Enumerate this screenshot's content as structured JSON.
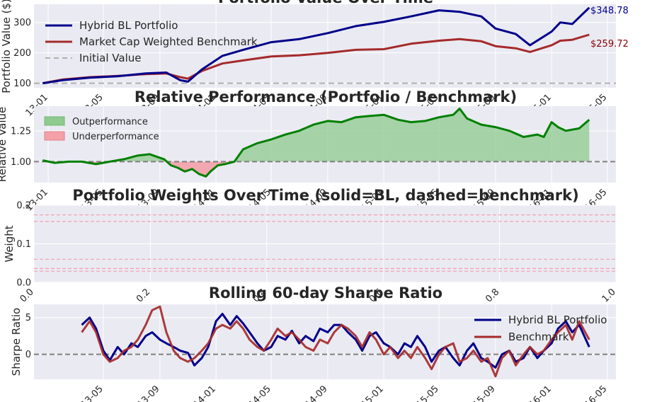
{
  "chart_data": [
    {
      "type": "line",
      "title": "Portfolio Value Over Time",
      "ylabel": "Portfolio Value ($)",
      "xlabel": "",
      "x_ticks": [
        "13-01",
        "13-05",
        "13-09",
        "14-01",
        "14-05",
        "14-09",
        "15-01",
        "15-05",
        "15-09",
        "16-01",
        "16-05"
      ],
      "yticks": [
        100,
        200,
        300
      ],
      "ylim": [
        85,
        360
      ],
      "grid": true,
      "legend": "top-left",
      "annotations": [
        {
          "text": "$348.78",
          "color": "#00008b"
        },
        {
          "text": "$259.72",
          "color": "#8b0000"
        }
      ],
      "series": [
        {
          "name": "Hybrid BL Portfolio",
          "color": "#00008b",
          "x": [
            "2012-12-20",
            "2013-02-01",
            "2013-04-01",
            "2013-06-01",
            "2013-08-01",
            "2013-09-15",
            "2013-10-15",
            "2013-11-01",
            "2013-12-01",
            "2014-01-15",
            "2014-03-01",
            "2014-05-01",
            "2014-07-01",
            "2014-09-01",
            "2014-11-01",
            "2015-01-01",
            "2015-03-01",
            "2015-05-01",
            "2015-06-15",
            "2015-08-01",
            "2015-09-01",
            "2015-10-15",
            "2015-11-15",
            "2016-01-01",
            "2016-01-20",
            "2016-02-15",
            "2016-03-23"
          ],
          "values": [
            100,
            110,
            118,
            123,
            132,
            135,
            110,
            105,
            145,
            190,
            210,
            235,
            245,
            265,
            288,
            302,
            320,
            340,
            335,
            320,
            280,
            262,
            225,
            270,
            300,
            295,
            348.78
          ]
        },
        {
          "name": "Market Cap Weighted Benchmark",
          "color": "#a52a2a",
          "x": [
            "2012-12-20",
            "2013-02-01",
            "2013-04-01",
            "2013-06-01",
            "2013-08-01",
            "2013-09-15",
            "2013-10-15",
            "2013-11-01",
            "2013-12-01",
            "2014-01-15",
            "2014-03-01",
            "2014-05-01",
            "2014-07-01",
            "2014-09-01",
            "2014-11-01",
            "2015-01-01",
            "2015-03-01",
            "2015-05-01",
            "2015-06-15",
            "2015-08-01",
            "2015-09-01",
            "2015-10-15",
            "2015-11-15",
            "2016-01-01",
            "2016-01-20",
            "2016-02-15",
            "2016-03-23"
          ],
          "values": [
            100,
            112,
            120,
            124,
            130,
            132,
            120,
            115,
            140,
            165,
            175,
            188,
            192,
            200,
            210,
            212,
            230,
            240,
            245,
            238,
            222,
            215,
            203,
            225,
            240,
            243,
            259.72
          ]
        },
        {
          "name": "Initial Value",
          "color": "#b0b0b0",
          "style": "dashed",
          "x": [
            "2012-12-01",
            "2016-05-20"
          ],
          "values": [
            100,
            100
          ]
        }
      ]
    },
    {
      "type": "area",
      "title": "Relative Performance (Portfolio / Benchmark)",
      "ylabel": "Relative Value",
      "xlabel": "",
      "x_ticks": [
        "13-01",
        "13-05",
        "13-09",
        "14-01",
        "14-05",
        "14-09",
        "15-01",
        "15-05",
        "15-09",
        "16-01",
        "16-05"
      ],
      "yticks": [
        1.0,
        1.25
      ],
      "ylim": [
        0.83,
        1.45
      ],
      "grid": true,
      "legend": "top-left",
      "baseline": 1.0,
      "series": [
        {
          "name": "",
          "color": "#008000",
          "x": [
            "2012-12-20",
            "2013-01-15",
            "2013-02-15",
            "2013-03-15",
            "2013-04-15",
            "2013-05-15",
            "2013-06-15",
            "2013-07-15",
            "2013-08-10",
            "2013-08-25",
            "2013-09-10",
            "2013-09-25",
            "2013-10-10",
            "2013-10-25",
            "2013-11-10",
            "2013-11-25",
            "2013-12-10",
            "2013-12-20",
            "2014-01-05",
            "2014-01-20",
            "2014-02-10",
            "2014-03-01",
            "2014-04-01",
            "2014-05-01",
            "2014-06-01",
            "2014-07-01",
            "2014-08-01",
            "2014-09-01",
            "2014-10-01",
            "2014-11-01",
            "2014-12-01",
            "2015-01-01",
            "2015-02-01",
            "2015-03-01",
            "2015-04-01",
            "2015-05-01",
            "2015-06-01",
            "2015-06-15",
            "2015-07-01",
            "2015-08-01",
            "2015-09-01",
            "2015-10-01",
            "2015-11-01",
            "2015-12-01",
            "2015-12-15",
            "2016-01-01",
            "2016-01-15",
            "2016-02-01",
            "2016-03-01",
            "2016-03-23"
          ],
          "values": [
            1.01,
            0.99,
            1.0,
            1.0,
            0.98,
            1.0,
            1.02,
            1.05,
            1.06,
            1.04,
            1.02,
            0.97,
            0.95,
            0.92,
            0.94,
            0.9,
            0.88,
            0.92,
            0.97,
            0.98,
            1.0,
            1.1,
            1.15,
            1.18,
            1.22,
            1.25,
            1.3,
            1.33,
            1.32,
            1.36,
            1.37,
            1.38,
            1.34,
            1.32,
            1.33,
            1.36,
            1.38,
            1.43,
            1.35,
            1.3,
            1.28,
            1.25,
            1.2,
            1.22,
            1.2,
            1.32,
            1.28,
            1.25,
            1.27,
            1.34
          ]
        }
      ],
      "legend_entries": [
        {
          "name": "Outperformance",
          "color": "#8fca8f"
        },
        {
          "name": "Underperformance",
          "color": "#f4a0a8"
        }
      ]
    },
    {
      "type": "line",
      "title": "Portfolio Weights Over Time (solid=BL, dashed=benchmark)",
      "ylabel": "Weight",
      "xlabel": "",
      "x_ticks": [
        "0.0",
        "0.2",
        "0.4",
        "0.6",
        "0.8",
        "1.0"
      ],
      "yticks": [
        0.0,
        0.1,
        0.2
      ],
      "ylim": [
        0.0,
        0.2
      ],
      "xlim": [
        0.0,
        1.0
      ],
      "grid": true,
      "series": [
        {
          "name": "",
          "color": "#f4a0b0",
          "style": "dashed",
          "values": [
            0.175,
            0.175
          ]
        },
        {
          "name": "",
          "color": "#f4a0b0",
          "style": "dashed",
          "values": [
            0.158,
            0.158
          ]
        },
        {
          "name": "",
          "color": "#f4a0b0",
          "style": "dashed",
          "values": [
            0.06,
            0.06
          ]
        },
        {
          "name": "",
          "color": "#f4a0b0",
          "style": "dashed",
          "values": [
            0.036,
            0.036
          ]
        },
        {
          "name": "",
          "color": "#f4a0b0",
          "style": "dashed",
          "values": [
            0.029,
            0.029
          ]
        }
      ]
    },
    {
      "type": "line",
      "title": "Rolling 60-day Sharpe Ratio",
      "ylabel": "Sharpe Ratio",
      "xlabel": "",
      "x_ticks": [
        "13-05",
        "13-09",
        "14-01",
        "14-05",
        "14-09",
        "15-01",
        "15-05",
        "15-09",
        "16-01",
        "16-05"
      ],
      "yticks": [
        0,
        5
      ],
      "ylim": [
        -3.4,
        6.8
      ],
      "grid": true,
      "legend": "top-right",
      "baseline": 0,
      "series": [
        {
          "name": "Hybrid BL Portfolio",
          "color": "#00008b",
          "x": [
            "2013-03-15",
            "2013-04-01",
            "2013-04-15",
            "2013-05-01",
            "2013-05-15",
            "2013-06-01",
            "2013-06-15",
            "2013-07-01",
            "2013-07-15",
            "2013-08-01",
            "2013-08-15",
            "2013-09-01",
            "2013-09-15",
            "2013-10-01",
            "2013-10-15",
            "2013-11-01",
            "2013-11-15",
            "2013-12-01",
            "2013-12-15",
            "2014-01-01",
            "2014-01-15",
            "2014-02-01",
            "2014-02-15",
            "2014-03-01",
            "2014-03-15",
            "2014-04-01",
            "2014-04-15",
            "2014-05-01",
            "2014-05-15",
            "2014-06-01",
            "2014-06-15",
            "2014-07-01",
            "2014-07-15",
            "2014-08-01",
            "2014-08-15",
            "2014-09-01",
            "2014-09-15",
            "2014-10-01",
            "2014-10-15",
            "2014-11-01",
            "2014-11-15",
            "2014-12-01",
            "2014-12-15",
            "2015-01-01",
            "2015-01-15",
            "2015-02-01",
            "2015-02-15",
            "2015-03-01",
            "2015-03-15",
            "2015-04-01",
            "2015-04-15",
            "2015-05-01",
            "2015-05-15",
            "2015-06-01",
            "2015-06-15",
            "2015-07-01",
            "2015-07-15",
            "2015-08-01",
            "2015-08-15",
            "2015-09-01",
            "2015-09-15",
            "2015-10-01",
            "2015-10-15",
            "2015-11-01",
            "2015-11-15",
            "2015-12-01",
            "2015-12-15",
            "2016-01-01",
            "2016-01-15",
            "2016-02-01",
            "2016-02-15",
            "2016-03-01",
            "2016-03-23"
          ],
          "values": [
            4.0,
            5.0,
            3.5,
            0.5,
            -0.8,
            1.0,
            0.0,
            1.5,
            1.0,
            2.5,
            3.0,
            2.0,
            1.5,
            1.0,
            0.5,
            0.2,
            -1.5,
            -0.5,
            1.0,
            4.5,
            5.5,
            4.0,
            5.2,
            4.2,
            3.0,
            1.5,
            0.5,
            1.0,
            2.5,
            2.0,
            3.2,
            1.5,
            2.5,
            1.8,
            3.5,
            3.0,
            4.0,
            4.0,
            3.0,
            2.0,
            0.5,
            2.5,
            3.0,
            1.5,
            1.0,
            0.0,
            1.5,
            1.0,
            2.5,
            1.0,
            -1.0,
            0.5,
            1.0,
            -0.5,
            -1.5,
            0.5,
            1.5,
            -0.5,
            -1.0,
            -1.8,
            0.0,
            0.5,
            -1.0,
            -0.5,
            1.0,
            -0.5,
            0.5,
            1.5,
            3.5,
            4.5,
            3.0,
            4.0,
            1.0
          ]
        },
        {
          "name": "Benchmark",
          "color": "#a52a2a",
          "x": [
            "2013-03-15",
            "2013-04-01",
            "2013-04-15",
            "2013-05-01",
            "2013-05-15",
            "2013-06-01",
            "2013-06-15",
            "2013-07-01",
            "2013-07-15",
            "2013-08-01",
            "2013-08-15",
            "2013-09-01",
            "2013-09-15",
            "2013-10-01",
            "2013-10-15",
            "2013-11-01",
            "2013-11-15",
            "2013-12-01",
            "2013-12-15",
            "2014-01-01",
            "2014-01-15",
            "2014-02-01",
            "2014-02-15",
            "2014-03-01",
            "2014-03-15",
            "2014-04-01",
            "2014-04-15",
            "2014-05-01",
            "2014-05-15",
            "2014-06-01",
            "2014-06-15",
            "2014-07-01",
            "2014-07-15",
            "2014-08-01",
            "2014-08-15",
            "2014-09-01",
            "2014-09-15",
            "2014-10-01",
            "2014-10-15",
            "2014-11-01",
            "2014-11-15",
            "2014-12-01",
            "2014-12-15",
            "2015-01-01",
            "2015-01-15",
            "2015-02-01",
            "2015-02-15",
            "2015-03-01",
            "2015-03-15",
            "2015-04-01",
            "2015-04-15",
            "2015-05-01",
            "2015-05-15",
            "2015-06-01",
            "2015-06-15",
            "2015-07-01",
            "2015-07-15",
            "2015-08-01",
            "2015-08-15",
            "2015-09-01",
            "2015-09-15",
            "2015-10-01",
            "2015-10-15",
            "2015-11-01",
            "2015-11-15",
            "2015-12-01",
            "2015-12-15",
            "2016-01-01",
            "2016-01-15",
            "2016-02-01",
            "2016-02-15",
            "2016-03-01",
            "2016-03-23"
          ],
          "values": [
            3.0,
            4.5,
            3.0,
            0.0,
            -1.0,
            -0.5,
            0.5,
            1.0,
            2.0,
            4.0,
            6.0,
            6.5,
            3.0,
            0.5,
            -0.5,
            -1.0,
            -0.5,
            0.5,
            1.5,
            3.5,
            4.0,
            3.5,
            4.5,
            3.5,
            2.0,
            1.0,
            0.5,
            2.0,
            3.5,
            2.5,
            3.0,
            2.0,
            1.0,
            0.5,
            2.0,
            1.5,
            3.0,
            4.0,
            3.5,
            2.5,
            1.0,
            3.0,
            2.0,
            0.0,
            1.0,
            -0.5,
            0.5,
            -0.5,
            1.0,
            -0.5,
            -2.0,
            0.0,
            1.0,
            1.5,
            -1.0,
            -0.5,
            0.5,
            -1.0,
            -0.5,
            -3.0,
            -0.5,
            0.5,
            -1.5,
            0.0,
            1.0,
            0.0,
            0.5,
            2.0,
            3.0,
            4.0,
            2.0,
            4.5,
            2.0
          ]
        }
      ]
    }
  ]
}
